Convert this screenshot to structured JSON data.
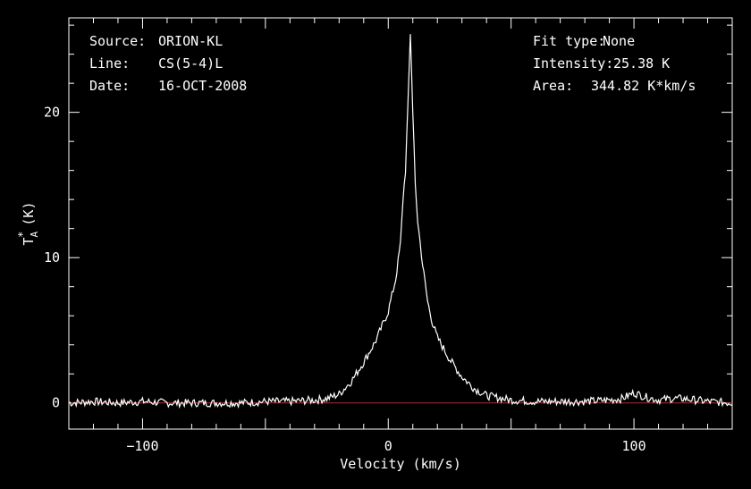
{
  "header": {
    "source_label": "Source:",
    "source_value": "ORION-KL",
    "line_label": "Line:",
    "line_value": "CS(5-4)L",
    "date_label": "Date:",
    "date_value": "16-OCT-2008",
    "fit_label": "Fit type:",
    "fit_value": "None",
    "intensity_label": "Intensity:",
    "intensity_value": "25.38 K",
    "area_label": "Area:",
    "area_value": "344.82 K*km/s"
  },
  "colors": {
    "background": "#000000",
    "foreground": "#ffffff",
    "baseline": "#cc2222"
  },
  "chart_data": {
    "type": "line",
    "title": "",
    "xlabel": "Velocity (km/s)",
    "ylabel": "T",
    "ylabel_sub": "A",
    "ylabel_sup": "*",
    "ylabel_unit": "(K)",
    "xlim": [
      -130,
      140
    ],
    "ylim": [
      -1.8,
      26.5
    ],
    "xticks": [
      -100,
      0,
      100
    ],
    "xtick_labels": [
      "−100",
      "0",
      "100"
    ],
    "yticks": [
      0,
      10,
      20
    ],
    "ytick_labels": [
      "0",
      "10",
      "20"
    ],
    "grid": false,
    "baseline_y": 0,
    "series": [
      {
        "x": [
          -130,
          -120,
          -110,
          -100,
          -90,
          -80,
          -70,
          -60,
          -50,
          -40,
          -30,
          -25,
          -20,
          -15,
          -10,
          -5,
          0,
          3,
          5,
          6,
          7,
          8,
          9,
          10,
          11,
          12,
          14,
          16,
          18,
          20,
          25,
          30,
          35,
          40,
          50,
          60,
          70,
          80,
          90,
          95,
          100,
          105,
          110,
          115,
          120,
          130,
          140
        ],
        "y": [
          0,
          0.1,
          0,
          0.1,
          0,
          0,
          0,
          0,
          0.1,
          0.1,
          0.2,
          0.3,
          0.6,
          1.5,
          2.8,
          4.3,
          6.3,
          8.5,
          11,
          14,
          16,
          20.5,
          25.38,
          20,
          15,
          12.5,
          9.5,
          7,
          5.5,
          4.5,
          3,
          1.8,
          1,
          0.5,
          0.2,
          0.1,
          0.1,
          0.1,
          0.2,
          0.3,
          0.7,
          0.4,
          0.2,
          0.3,
          0.3,
          0.1,
          0
        ]
      }
    ]
  }
}
